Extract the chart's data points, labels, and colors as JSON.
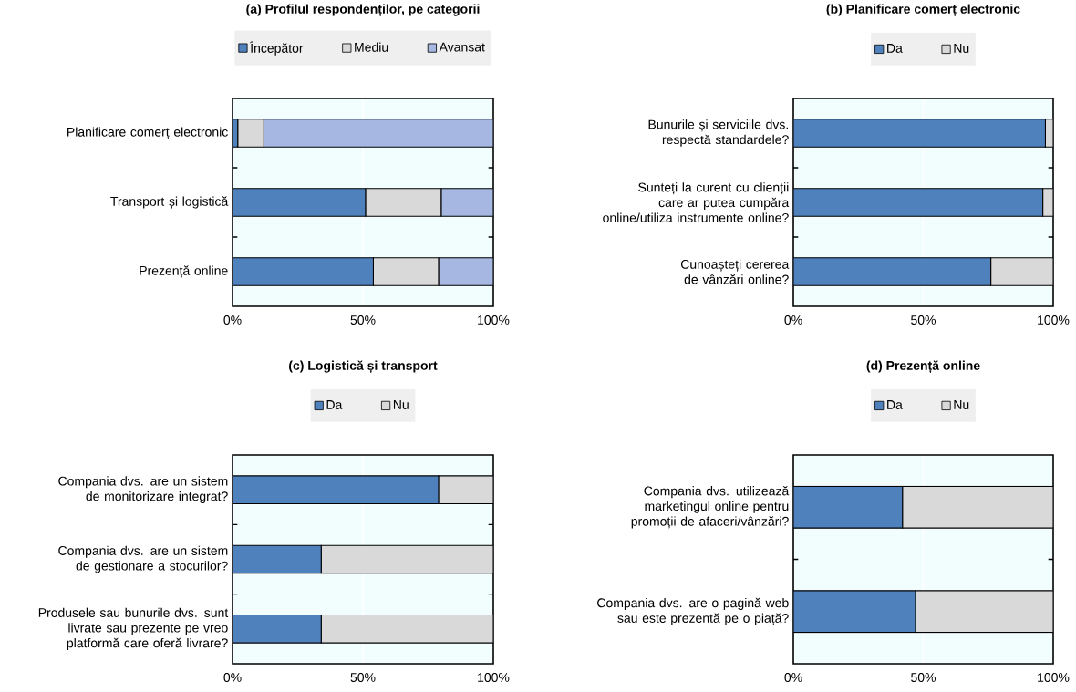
{
  "chart_data": [
    {
      "type": "bar",
      "orientation": "horizontal",
      "stacked": true,
      "title": "(a) Profilul respondenților, pe categorii",
      "categories": [
        "Planificare comerț electronic",
        "Transport și logistică",
        "Prezență online"
      ],
      "series": [
        {
          "name": "Începător",
          "color": "#4f81bd",
          "values": [
            2,
            51,
            54
          ]
        },
        {
          "name": "Mediu",
          "color": "#d9d9d9",
          "values": [
            10,
            29,
            25
          ]
        },
        {
          "name": "Avansat",
          "color": "#a6b8e2",
          "values": [
            88,
            20,
            21
          ]
        }
      ],
      "xlim": [
        0,
        100
      ],
      "xticks": [
        {
          "value": 0,
          "label": "0%"
        },
        {
          "value": 50,
          "label": "50%"
        },
        {
          "value": 100,
          "label": "100%"
        }
      ],
      "grid": "x",
      "legend": "top"
    },
    {
      "type": "bar",
      "orientation": "horizontal",
      "stacked": true,
      "title": "(b) Planificare comerț electronic",
      "categories": [
        "Bunurile și serviciile dvs. respectă standardele?",
        "Sunteți la curent cu clienții care ar putea cumpăra online/utiliza instrumente online?",
        "Cunoașteți cererea de vânzări online?"
      ],
      "series": [
        {
          "name": "Da",
          "color": "#4f81bd",
          "values": [
            97,
            96,
            76
          ]
        },
        {
          "name": "Nu",
          "color": "#d9d9d9",
          "values": [
            3,
            4,
            24
          ]
        }
      ],
      "xlim": [
        0,
        100
      ],
      "xticks": [
        {
          "value": 0,
          "label": "0%"
        },
        {
          "value": 50,
          "label": "50%"
        },
        {
          "value": 100,
          "label": "100%"
        }
      ],
      "grid": "x",
      "legend": "top"
    },
    {
      "type": "bar",
      "orientation": "horizontal",
      "stacked": true,
      "title": "(c) Logistică și transport",
      "categories": [
        "Compania dvs. are un sistem de monitorizare integrat?",
        "Compania dvs. are un sistem de gestionare a stocurilor?",
        "Produsele sau bunurile dvs. sunt livrate sau prezente pe vreo platformă care oferă livrare?"
      ],
      "series": [
        {
          "name": "Da",
          "color": "#4f81bd",
          "values": [
            79,
            34,
            34
          ]
        },
        {
          "name": "Nu",
          "color": "#d9d9d9",
          "values": [
            21,
            66,
            66
          ]
        }
      ],
      "xlim": [
        0,
        100
      ],
      "xticks": [
        {
          "value": 0,
          "label": "0%"
        },
        {
          "value": 50,
          "label": "50%"
        },
        {
          "value": 100,
          "label": "100%"
        }
      ],
      "grid": "x",
      "legend": "top"
    },
    {
      "type": "bar",
      "orientation": "horizontal",
      "stacked": true,
      "title": "(d) Prezență online",
      "categories": [
        "Compania dvs. utilizează marketingul online pentru promoții de afaceri/vânzări?",
        "Compania dvs. are o pagină web sau este prezentă pe o piață?"
      ],
      "series": [
        {
          "name": "Da",
          "color": "#4f81bd",
          "values": [
            42,
            47
          ]
        },
        {
          "name": "Nu",
          "color": "#d9d9d9",
          "values": [
            58,
            53
          ]
        }
      ],
      "xlim": [
        0,
        100
      ],
      "xticks": [
        {
          "value": 0,
          "label": "0%"
        },
        {
          "value": 50,
          "label": "50%"
        },
        {
          "value": 100,
          "label": "100%"
        }
      ],
      "grid": "x",
      "legend": "top"
    }
  ]
}
